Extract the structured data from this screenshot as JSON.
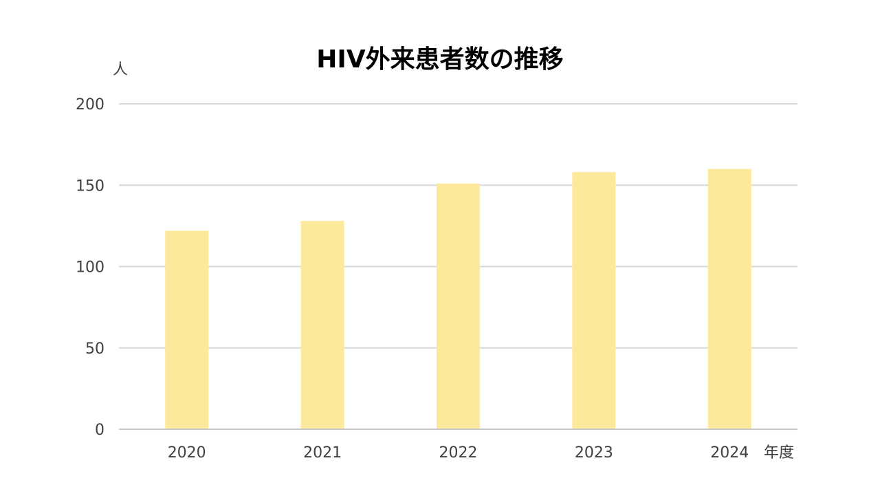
{
  "chart_data": {
    "type": "bar",
    "title": "HIV外来患者数の推移",
    "ylabel": "人",
    "xlabel": "年度",
    "categories": [
      "2020",
      "2021",
      "2022",
      "2023",
      "2024"
    ],
    "values": [
      122,
      128,
      151,
      158,
      160
    ],
    "ylim": [
      0,
      200
    ],
    "yticks": [
      0,
      50,
      100,
      150,
      200
    ],
    "grid": true,
    "legend": "none",
    "bar_color": "#fde99b",
    "grid_color": "#d9d9d9",
    "text_color": "#404040",
    "title_color": "#000000"
  }
}
